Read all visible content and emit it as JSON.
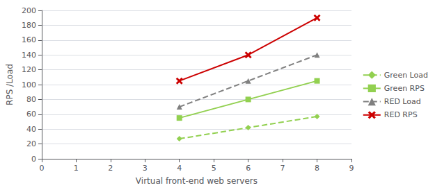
{
  "chart_data": {
    "type": "line",
    "x": [
      4,
      6,
      8
    ],
    "series": [
      {
        "name": "Green Load",
        "color": "#92d050",
        "values": [
          27,
          42,
          57
        ],
        "marker": "diamond",
        "line_style": "dashed"
      },
      {
        "name": "Green RPS",
        "color": "#92d050",
        "values": [
          55,
          80,
          105
        ],
        "marker": "square",
        "line_style": "solid"
      },
      {
        "name": "RED Load",
        "color": "#808080",
        "values": [
          70,
          105,
          140
        ],
        "marker": "triangle",
        "line_style": "dashed"
      },
      {
        "name": "RED RPS",
        "color": "#cc0000",
        "values": [
          105,
          140,
          190
        ],
        "marker": "x",
        "line_style": "solid"
      }
    ],
    "xlabel": "Virtual front-end web servers",
    "ylabel": "RPS /Load",
    "xlim": [
      0,
      9
    ],
    "xticks": [
      0,
      1,
      2,
      3,
      4,
      5,
      6,
      7,
      8,
      9
    ],
    "ylim": [
      0,
      200
    ],
    "yticks": [
      0,
      20,
      40,
      60,
      80,
      100,
      120,
      140,
      160,
      180,
      200
    ],
    "grid": true,
    "legend": "right"
  }
}
